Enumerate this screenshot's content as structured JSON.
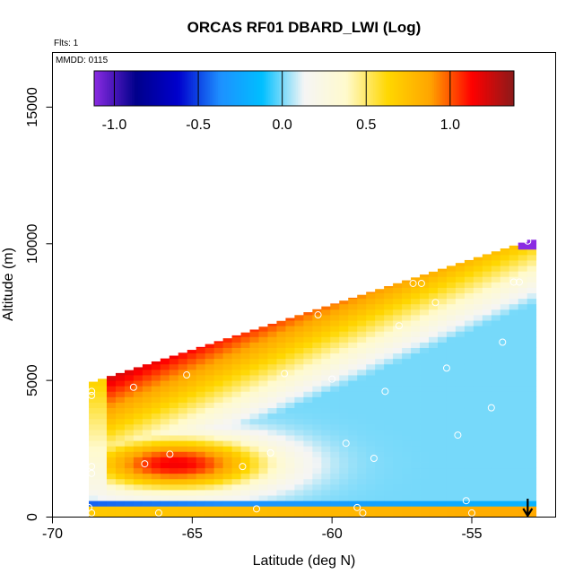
{
  "chart_data": {
    "type": "heatmap",
    "title": "ORCAS RF01 DBARD_LWI (Log)",
    "flights_note": "Flts: 1",
    "date_note": "MMDD: 0115",
    "xlabel": "Latitude (deg N)",
    "ylabel": "Altitude (m)",
    "xlim": [
      -70,
      -52
    ],
    "ylim": [
      0,
      17000
    ],
    "x_ticks": [
      -70,
      -65,
      -60,
      -55
    ],
    "x_tick_labels": [
      "-70",
      "-65",
      "-60",
      "-55"
    ],
    "y_ticks": [
      0,
      5000,
      10000,
      15000
    ],
    "y_tick_labels": [
      "0",
      "5000",
      "10000",
      "15000"
    ],
    "colorbar": {
      "range": [
        -1.12,
        1.38
      ],
      "ticks": [
        -1.0,
        -0.5,
        0.0,
        0.5,
        1.0
      ],
      "tick_labels": [
        "-1.0",
        "-0.5",
        "0.0",
        "0.5",
        "1.0"
      ],
      "colors": [
        "#8a2be2",
        "#00008b",
        "#0000cd",
        "#1e90ff",
        "#00bfff",
        "#f5f5f5",
        "#fffacd",
        "#ffd700",
        "#ffa500",
        "#ff0000",
        "#8b1a1a"
      ]
    },
    "field_extent": {
      "lat_min": -68.7,
      "lat_max": -53.0,
      "alt_bottom": 0,
      "alt_top_at_lat_min": 4900,
      "alt_top_at_lat_max": 10100
    },
    "observations": [
      {
        "lat": -68.6,
        "alt": 4600
      },
      {
        "lat": -68.6,
        "alt": 4450
      },
      {
        "lat": -68.6,
        "alt": 1850
      },
      {
        "lat": -68.6,
        "alt": 1600
      },
      {
        "lat": -68.7,
        "alt": 350
      },
      {
        "lat": -68.6,
        "alt": 150
      },
      {
        "lat": -67.1,
        "alt": 4750
      },
      {
        "lat": -66.7,
        "alt": 1950
      },
      {
        "lat": -66.2,
        "alt": 150
      },
      {
        "lat": -65.8,
        "alt": 2300
      },
      {
        "lat": -65.2,
        "alt": 5200
      },
      {
        "lat": -63.2,
        "alt": 1850
      },
      {
        "lat": -62.7,
        "alt": 300
      },
      {
        "lat": -62.2,
        "alt": 2350
      },
      {
        "lat": -61.7,
        "alt": 5250
      },
      {
        "lat": -60.5,
        "alt": 7400
      },
      {
        "lat": -60.0,
        "alt": 5050
      },
      {
        "lat": -59.5,
        "alt": 2700
      },
      {
        "lat": -59.1,
        "alt": 350
      },
      {
        "lat": -58.9,
        "alt": 150
      },
      {
        "lat": -58.5,
        "alt": 2150
      },
      {
        "lat": -58.1,
        "alt": 4600
      },
      {
        "lat": -57.6,
        "alt": 7000
      },
      {
        "lat": -57.1,
        "alt": 8550
      },
      {
        "lat": -56.8,
        "alt": 8550
      },
      {
        "lat": -56.3,
        "alt": 7850
      },
      {
        "lat": -55.9,
        "alt": 5450
      },
      {
        "lat": -55.5,
        "alt": 3000
      },
      {
        "lat": -55.2,
        "alt": 600
      },
      {
        "lat": -55.0,
        "alt": 150
      },
      {
        "lat": -54.3,
        "alt": 4000
      },
      {
        "lat": -53.9,
        "alt": 6400
      },
      {
        "lat": -53.5,
        "alt": 8600
      },
      {
        "lat": -53.3,
        "alt": 8600
      },
      {
        "lat": -53.0,
        "alt": 10100
      }
    ],
    "marker": {
      "lat": -53.0,
      "direction": "down"
    }
  }
}
